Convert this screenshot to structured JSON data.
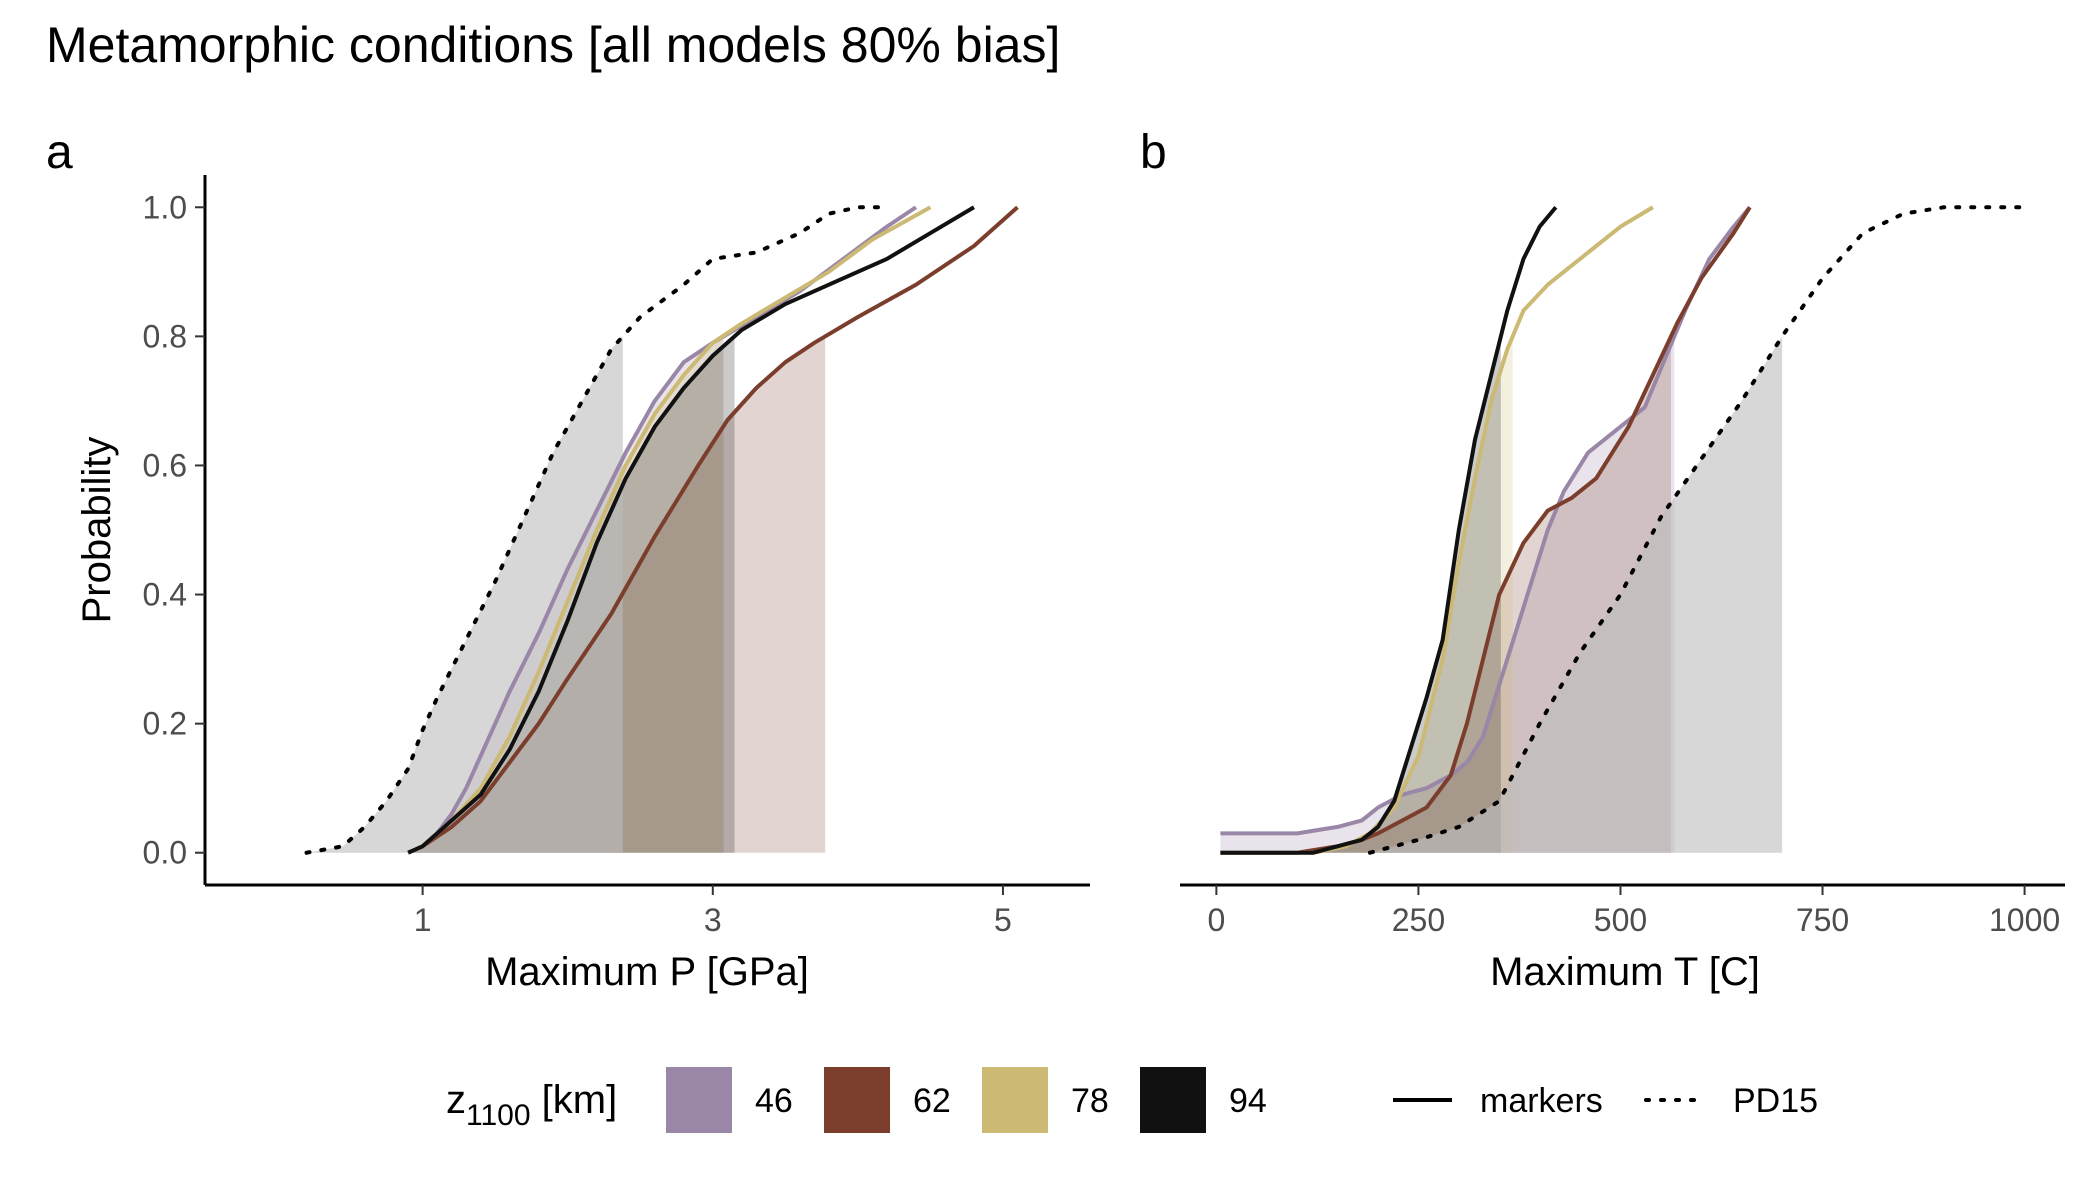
{
  "title": "Metamorphic conditions [all models 80% bias]",
  "legend": {
    "fill_title_main": "z",
    "fill_title_sub": "1100",
    "fill_title_unit": " [km]",
    "groups": [
      {
        "label": "46",
        "color": "#9a86a6"
      },
      {
        "label": "62",
        "color": "#7b3e2c"
      },
      {
        "label": "78",
        "color": "#cbb974"
      },
      {
        "label": "94",
        "color": "#121112"
      }
    ],
    "linetypes": [
      {
        "label": "markers",
        "style": "solid"
      },
      {
        "label": "PD15",
        "style": "dotted"
      }
    ]
  },
  "chart_data": [
    {
      "panel": "a",
      "type": "line",
      "xlabel": "Maximum P [GPa]",
      "ylabel": "Probability",
      "xlim": [
        -0.5,
        5.6
      ],
      "ylim": [
        -0.05,
        1.05
      ],
      "xticks": [
        1,
        3,
        5
      ],
      "yticks": [
        0.0,
        0.2,
        0.4,
        0.6,
        0.8,
        1.0
      ],
      "grid": false,
      "shade_threshold": 0.8,
      "series": [
        {
          "name": "46",
          "linetype": "markers",
          "color": "#9a86a6",
          "x": [
            0.9,
            1.0,
            1.1,
            1.2,
            1.3,
            1.4,
            1.5,
            1.6,
            1.8,
            2.0,
            2.2,
            2.4,
            2.6,
            2.8,
            3.0,
            3.3,
            3.6,
            3.9,
            4.2,
            4.4
          ],
          "y": [
            0.0,
            0.01,
            0.03,
            0.06,
            0.1,
            0.15,
            0.2,
            0.25,
            0.34,
            0.44,
            0.53,
            0.62,
            0.7,
            0.76,
            0.79,
            0.83,
            0.87,
            0.92,
            0.97,
            1.0
          ]
        },
        {
          "name": "62",
          "linetype": "markers",
          "color": "#7b3e2c",
          "x": [
            0.9,
            1.0,
            1.2,
            1.4,
            1.6,
            1.8,
            2.0,
            2.3,
            2.6,
            2.9,
            3.1,
            3.3,
            3.5,
            3.7,
            4.0,
            4.4,
            4.8,
            5.1
          ],
          "y": [
            0.0,
            0.01,
            0.04,
            0.08,
            0.14,
            0.2,
            0.27,
            0.37,
            0.49,
            0.6,
            0.67,
            0.72,
            0.76,
            0.79,
            0.83,
            0.88,
            0.94,
            1.0
          ]
        },
        {
          "name": "78",
          "linetype": "markers",
          "color": "#cbb974",
          "x": [
            0.9,
            1.0,
            1.1,
            1.2,
            1.4,
            1.6,
            1.8,
            2.0,
            2.2,
            2.4,
            2.6,
            2.8,
            3.0,
            3.2,
            3.5,
            3.8,
            4.1,
            4.5
          ],
          "y": [
            0.0,
            0.01,
            0.03,
            0.05,
            0.1,
            0.18,
            0.28,
            0.39,
            0.5,
            0.6,
            0.68,
            0.74,
            0.79,
            0.82,
            0.86,
            0.9,
            0.95,
            1.0
          ]
        },
        {
          "name": "94",
          "linetype": "markers",
          "color": "#121112",
          "x": [
            0.9,
            1.0,
            1.1,
            1.2,
            1.4,
            1.6,
            1.8,
            2.0,
            2.2,
            2.4,
            2.6,
            2.8,
            3.0,
            3.2,
            3.5,
            3.8,
            4.2,
            4.5,
            4.8
          ],
          "y": [
            0.0,
            0.01,
            0.03,
            0.05,
            0.09,
            0.16,
            0.25,
            0.36,
            0.48,
            0.58,
            0.66,
            0.72,
            0.77,
            0.81,
            0.85,
            0.88,
            0.92,
            0.96,
            1.0
          ]
        },
        {
          "name": "PD15",
          "linetype": "PD15",
          "color": "#000000",
          "x": [
            0.2,
            0.45,
            0.6,
            0.75,
            0.9,
            1.0,
            1.1,
            1.3,
            1.5,
            1.7,
            1.9,
            2.1,
            2.3,
            2.5,
            2.8,
            3.0,
            3.3,
            3.6,
            3.8,
            4.0,
            4.2
          ],
          "y": [
            0.0,
            0.01,
            0.04,
            0.08,
            0.13,
            0.19,
            0.24,
            0.33,
            0.42,
            0.52,
            0.62,
            0.7,
            0.78,
            0.83,
            0.88,
            0.92,
            0.93,
            0.96,
            0.99,
            1.0,
            1.0
          ]
        }
      ]
    },
    {
      "panel": "b",
      "type": "line",
      "xlabel": "Maximum T [C]",
      "ylabel": "",
      "xlim": [
        -45,
        1050
      ],
      "ylim": [
        -0.05,
        1.05
      ],
      "xticks": [
        0,
        250,
        500,
        750,
        1000
      ],
      "yticks": [],
      "grid": false,
      "shade_threshold": 0.8,
      "series": [
        {
          "name": "46",
          "linetype": "markers",
          "color": "#9a86a6",
          "x": [
            5,
            100,
            150,
            180,
            200,
            230,
            260,
            290,
            310,
            330,
            350,
            380,
            410,
            430,
            460,
            500,
            530,
            560,
            580,
            610,
            640,
            660
          ],
          "y": [
            0.03,
            0.03,
            0.04,
            0.05,
            0.07,
            0.09,
            0.1,
            0.12,
            0.14,
            0.18,
            0.26,
            0.38,
            0.5,
            0.56,
            0.62,
            0.66,
            0.69,
            0.78,
            0.84,
            0.92,
            0.97,
            1.0
          ]
        },
        {
          "name": "62",
          "linetype": "markers",
          "color": "#7b3e2c",
          "x": [
            5,
            100,
            150,
            180,
            200,
            230,
            260,
            290,
            310,
            330,
            350,
            380,
            410,
            440,
            470,
            510,
            540,
            570,
            600,
            640,
            660
          ],
          "y": [
            0.0,
            0.0,
            0.01,
            0.02,
            0.03,
            0.05,
            0.07,
            0.12,
            0.2,
            0.3,
            0.4,
            0.48,
            0.53,
            0.55,
            0.58,
            0.66,
            0.74,
            0.82,
            0.89,
            0.96,
            1.0
          ]
        },
        {
          "name": "78",
          "linetype": "markers",
          "color": "#cbb974",
          "x": [
            5,
            120,
            160,
            190,
            220,
            250,
            280,
            300,
            320,
            340,
            360,
            380,
            410,
            440,
            470,
            500,
            540
          ],
          "y": [
            0.0,
            0.0,
            0.01,
            0.03,
            0.07,
            0.15,
            0.3,
            0.45,
            0.58,
            0.7,
            0.78,
            0.84,
            0.88,
            0.91,
            0.94,
            0.97,
            1.0
          ]
        },
        {
          "name": "94",
          "linetype": "markers",
          "color": "#121112",
          "x": [
            5,
            120,
            150,
            180,
            200,
            220,
            240,
            260,
            280,
            300,
            320,
            340,
            360,
            380,
            400,
            420
          ],
          "y": [
            0.0,
            0.0,
            0.01,
            0.02,
            0.04,
            0.08,
            0.16,
            0.24,
            0.33,
            0.5,
            0.64,
            0.74,
            0.84,
            0.92,
            0.97,
            1.0
          ]
        },
        {
          "name": "PD15",
          "linetype": "PD15",
          "color": "#000000",
          "x": [
            190,
            250,
            300,
            350,
            400,
            450,
            500,
            550,
            600,
            650,
            700,
            750,
            800,
            850,
            900,
            1000
          ],
          "y": [
            0.0,
            0.02,
            0.04,
            0.08,
            0.2,
            0.31,
            0.4,
            0.52,
            0.61,
            0.7,
            0.8,
            0.89,
            0.96,
            0.99,
            1.0,
            1.0
          ]
        }
      ]
    }
  ]
}
